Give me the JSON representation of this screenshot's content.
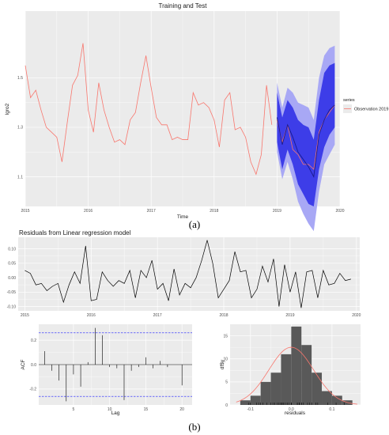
{
  "figure": {
    "caption_a": "(a)",
    "caption_b": "(b)"
  },
  "chart_data": [
    {
      "type": "line",
      "title": "Training and Test",
      "xlabel": "Time",
      "ylabel": "lgro2",
      "xlim": [
        2015,
        2020
      ],
      "ylim": [
        0.98,
        1.77
      ],
      "x_ticks": [
        2015,
        2016,
        2017,
        2018,
        2019,
        2020
      ],
      "x_tick_labels": [
        "2015",
        "2016",
        "2017",
        "2018",
        "2019",
        "2020"
      ],
      "y_ticks": [
        1.1,
        1.3,
        1.5
      ],
      "y_tick_labels": [
        "1.1",
        "1.3",
        "1.5"
      ],
      "grid": true,
      "legend": {
        "title": "series",
        "position": "right",
        "entries": [
          "Observation 2019"
        ]
      },
      "colors": {
        "training": "#f8766d",
        "forecast": "#1a1a8c",
        "pi80": "#3d3de8",
        "pi95": "#a8a8f5",
        "panel": "#ebebeb"
      },
      "training": {
        "x": [
          2015.0,
          2015.083,
          2015.167,
          2015.25,
          2015.333,
          2015.417,
          2015.5,
          2015.583,
          2015.667,
          2015.75,
          2015.833,
          2015.917,
          2016.0,
          2016.083,
          2016.167,
          2016.25,
          2016.333,
          2016.417,
          2016.5,
          2016.583,
          2016.667,
          2016.75,
          2016.833,
          2016.917,
          2017.0,
          2017.083,
          2017.167,
          2017.25,
          2017.333,
          2017.417,
          2017.5,
          2017.583,
          2017.667,
          2017.75,
          2017.833,
          2017.917,
          2018.0,
          2018.083,
          2018.167,
          2018.25,
          2018.333,
          2018.417,
          2018.5,
          2018.583,
          2018.667,
          2018.75,
          2018.833,
          2018.917
        ],
        "y": [
          1.55,
          1.42,
          1.45,
          1.37,
          1.3,
          1.28,
          1.26,
          1.16,
          1.32,
          1.47,
          1.51,
          1.64,
          1.37,
          1.28,
          1.48,
          1.37,
          1.3,
          1.24,
          1.25,
          1.23,
          1.33,
          1.36,
          1.48,
          1.59,
          1.46,
          1.34,
          1.31,
          1.31,
          1.25,
          1.26,
          1.25,
          1.25,
          1.44,
          1.39,
          1.4,
          1.38,
          1.33,
          1.22,
          1.41,
          1.44,
          1.29,
          1.3,
          1.26,
          1.16,
          1.11,
          1.19,
          1.47,
          1.31
        ]
      },
      "forecast": {
        "x": [
          2019.0,
          2019.083,
          2019.167,
          2019.25,
          2019.333,
          2019.417,
          2019.5,
          2019.583,
          2019.667,
          2019.75,
          2019.833,
          2019.917
        ],
        "mean": [
          1.34,
          1.23,
          1.31,
          1.26,
          1.2,
          1.17,
          1.14,
          1.1,
          1.27,
          1.33,
          1.37,
          1.39
        ],
        "lo80": [
          1.24,
          1.13,
          1.21,
          1.15,
          1.07,
          1.03,
          0.99,
          0.98,
          1.13,
          1.22,
          1.27,
          1.3
        ],
        "hi80": [
          1.44,
          1.34,
          1.41,
          1.38,
          1.33,
          1.31,
          1.3,
          1.25,
          1.41,
          1.52,
          1.55,
          1.56
        ],
        "lo95": [
          1.2,
          1.09,
          1.16,
          1.09,
          1.0,
          0.95,
          0.91,
          0.88,
          1.04,
          1.15,
          1.19,
          1.23
        ],
        "hi95": [
          1.48,
          1.38,
          1.46,
          1.44,
          1.4,
          1.39,
          1.38,
          1.33,
          1.5,
          1.59,
          1.62,
          1.63
        ]
      },
      "observation_2019": {
        "x": [
          2019.0,
          2019.083,
          2019.167,
          2019.25,
          2019.333,
          2019.417,
          2019.5,
          2019.583,
          2019.667,
          2019.75,
          2019.833,
          2019.917
        ],
        "y": [
          1.33,
          1.24,
          1.31,
          1.21,
          1.19,
          1.15,
          1.15,
          1.13,
          1.28,
          1.33,
          1.36,
          1.39
        ]
      }
    },
    {
      "type": "line",
      "title": "Residuals from Linear regression model",
      "xlabel": "",
      "ylabel": "",
      "xlim": [
        2014.9,
        2020.05
      ],
      "ylim": [
        -0.115,
        0.14
      ],
      "x_ticks": [
        2015,
        2016,
        2017,
        2018,
        2019,
        2020
      ],
      "x_tick_labels": [
        "2015",
        "2016",
        "2017",
        "2018",
        "2019",
        "2020"
      ],
      "y_ticks": [
        -0.1,
        -0.05,
        0.0,
        0.05,
        0.1
      ],
      "y_tick_labels": [
        "-0.10",
        "-0.05",
        "0.00",
        "0.05",
        "0.10"
      ],
      "grid": true,
      "x": [
        2015.0,
        2015.083,
        2015.167,
        2015.25,
        2015.333,
        2015.417,
        2015.5,
        2015.583,
        2015.667,
        2015.75,
        2015.833,
        2015.917,
        2016.0,
        2016.083,
        2016.167,
        2016.25,
        2016.333,
        2016.417,
        2016.5,
        2016.583,
        2016.667,
        2016.75,
        2016.833,
        2016.917,
        2017.0,
        2017.083,
        2017.167,
        2017.25,
        2017.333,
        2017.417,
        2017.5,
        2017.583,
        2017.667,
        2017.75,
        2017.833,
        2017.917,
        2018.0,
        2018.083,
        2018.167,
        2018.25,
        2018.333,
        2018.417,
        2018.5,
        2018.583,
        2018.667,
        2018.75,
        2018.833,
        2018.917,
        2019.0,
        2019.083,
        2019.167,
        2019.25,
        2019.333,
        2019.417,
        2019.5,
        2019.583,
        2019.667,
        2019.75,
        2019.833,
        2019.917
      ],
      "y": [
        0.025,
        0.015,
        -0.025,
        -0.02,
        -0.045,
        -0.03,
        -0.02,
        -0.085,
        -0.025,
        0.02,
        -0.02,
        0.11,
        -0.08,
        -0.075,
        0.02,
        -0.01,
        -0.03,
        -0.01,
        -0.02,
        0.025,
        -0.07,
        0.025,
        0.0,
        0.06,
        -0.04,
        -0.02,
        -0.08,
        0.03,
        -0.06,
        -0.02,
        -0.035,
        0.0,
        0.06,
        0.13,
        0.05,
        -0.07,
        -0.04,
        -0.01,
        0.09,
        0.02,
        0.025,
        -0.07,
        -0.04,
        0.04,
        -0.015,
        0.065,
        -0.1,
        0.045,
        -0.05,
        0.02,
        -0.105,
        0.02,
        0.025,
        -0.07,
        0.025,
        -0.025,
        -0.02,
        0.015,
        -0.01,
        -0.005
      ]
    },
    {
      "type": "bar",
      "title": "",
      "xlabel": "Lag",
      "ylabel": "ACF",
      "xlim": [
        0.2,
        21.4
      ],
      "ylim": [
        -0.33,
        0.33
      ],
      "x_ticks": [
        5,
        10,
        15,
        20
      ],
      "x_tick_labels": [
        "5",
        "10",
        "15",
        "20"
      ],
      "y_ticks": [
        -0.2,
        0.0,
        0.2
      ],
      "y_tick_labels": [
        "-0.2",
        "0.0",
        "0.2"
      ],
      "grid": true,
      "confidence_bounds": [
        0.26,
        -0.26
      ],
      "lags": [
        1,
        2,
        3,
        4,
        5,
        6,
        7,
        8,
        9,
        10,
        11,
        12,
        13,
        14,
        15,
        16,
        17,
        18,
        19,
        20,
        21
      ],
      "values": [
        0.11,
        -0.05,
        -0.13,
        -0.3,
        -0.08,
        -0.18,
        0.02,
        0.3,
        0.24,
        -0.02,
        -0.03,
        -0.29,
        -0.05,
        -0.02,
        0.06,
        -0.03,
        0.03,
        -0.02,
        0.0,
        -0.17,
        0.0
      ]
    },
    {
      "type": "histogram",
      "title": "",
      "xlabel": "residuals",
      "ylabel": "df$y",
      "xlim": [
        -0.15,
        0.17
      ],
      "ylim": [
        0,
        17.5
      ],
      "x_ticks": [
        -0.1,
        0.0,
        0.1
      ],
      "x_tick_labels": [
        "-0.1",
        "0.0",
        "0.1"
      ],
      "y_ticks": [
        0,
        5,
        10,
        15
      ],
      "y_tick_labels": [
        "0",
        "5",
        "10",
        "15"
      ],
      "grid": true,
      "bin_edges": [
        -0.125,
        -0.1,
        -0.075,
        -0.05,
        -0.025,
        0.0,
        0.025,
        0.05,
        0.075,
        0.1,
        0.125,
        0.15
      ],
      "counts": [
        1,
        2,
        5,
        7,
        11,
        17,
        13,
        7,
        3,
        2,
        1
      ],
      "density_curve": {
        "mean": 0.0,
        "sd": 0.055,
        "color": "#f8766d"
      },
      "rug": [
        -0.105,
        -0.1,
        -0.085,
        -0.08,
        -0.075,
        -0.07,
        -0.07,
        -0.07,
        -0.06,
        -0.05,
        -0.045,
        -0.04,
        -0.04,
        -0.035,
        -0.03,
        -0.03,
        -0.025,
        -0.025,
        -0.025,
        -0.02,
        -0.02,
        -0.02,
        -0.02,
        -0.02,
        -0.015,
        -0.01,
        -0.01,
        -0.01,
        -0.01,
        -0.005,
        0.0,
        0.0,
        0.0,
        0.015,
        0.015,
        0.02,
        0.02,
        0.02,
        0.02,
        0.02,
        0.025,
        0.025,
        0.025,
        0.025,
        0.025,
        0.025,
        0.03,
        0.04,
        0.045,
        0.05,
        0.06,
        0.06,
        0.065,
        0.09,
        0.11,
        0.13
      ]
    }
  ]
}
